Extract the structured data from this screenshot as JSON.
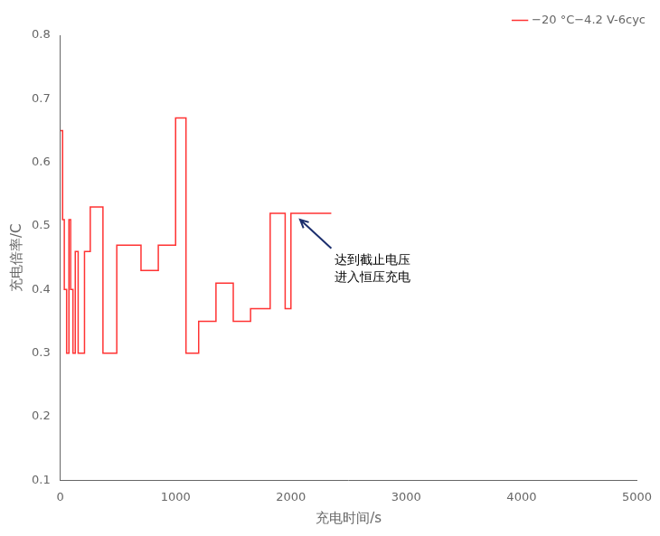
{
  "chart_data": {
    "type": "line",
    "xlabel": "充电时间/s",
    "ylabel": "充电倍率/C",
    "x": [
      0,
      20,
      20,
      35,
      35,
      55,
      55,
      75,
      75,
      90,
      90,
      110,
      110,
      130,
      130,
      155,
      155,
      210,
      210,
      260,
      260,
      370,
      370,
      490,
      490,
      700,
      700,
      850,
      850,
      1000,
      1000,
      1090,
      1090,
      1200,
      1200,
      1350,
      1350,
      1500,
      1500,
      1650,
      1650,
      1820,
      1820,
      1950,
      1950,
      2000,
      2000,
      2350
    ],
    "series": [
      {
        "name": "−20 °C−4.2 V-6cyc",
        "color": "#FF3333",
        "values": [
          0.65,
          0.65,
          0.51,
          0.51,
          0.4,
          0.4,
          0.3,
          0.3,
          0.51,
          0.51,
          0.4,
          0.4,
          0.3,
          0.3,
          0.46,
          0.46,
          0.3,
          0.3,
          0.46,
          0.46,
          0.53,
          0.53,
          0.3,
          0.3,
          0.47,
          0.47,
          0.43,
          0.43,
          0.47,
          0.47,
          0.67,
          0.67,
          0.3,
          0.3,
          0.35,
          0.35,
          0.41,
          0.41,
          0.35,
          0.35,
          0.37,
          0.37,
          0.52,
          0.52,
          0.37,
          0.37,
          0.52,
          0.52
        ]
      }
    ],
    "xlim": [
      0,
      5000
    ],
    "ylim": [
      0.1,
      0.8
    ],
    "xticks": [
      0,
      1000,
      2000,
      3000,
      4000,
      5000
    ],
    "yticks": [
      0.1,
      0.2,
      0.3,
      0.4,
      0.5,
      0.6,
      0.7,
      0.8
    ],
    "grid": false,
    "legend": "upper right",
    "annotations": [
      {
        "text": "达到截止电压\n进入恒压充电",
        "x": 2380,
        "y": 0.455
      }
    ],
    "arrows": [
      {
        "from": [
          2350,
          0.465
        ],
        "to": [
          2080,
          0.51
        ],
        "color": "#1C2F6E"
      }
    ]
  }
}
